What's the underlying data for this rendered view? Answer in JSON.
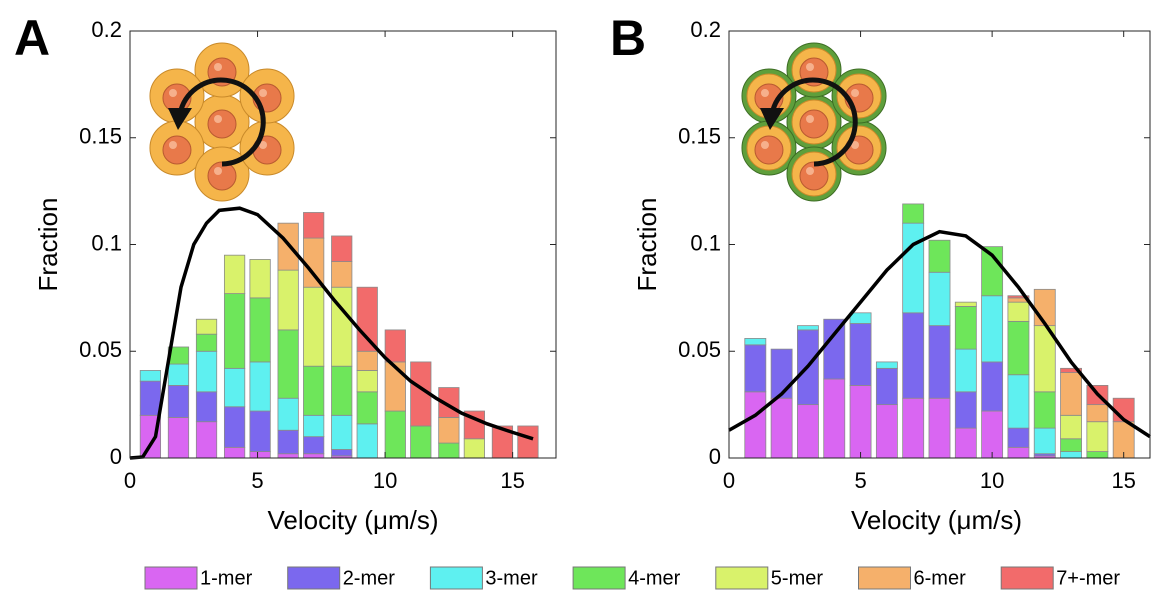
{
  "chart_data": [
    {
      "type": "stacked-bar",
      "panel_label": "A",
      "xlabel": "Velocity (μm/s)",
      "ylabel": "Fraction",
      "xlim": [
        0,
        16.7
      ],
      "ylim": [
        0,
        0.2
      ],
      "xticks": [
        0,
        5,
        10,
        15
      ],
      "yticks": [
        0,
        0.05,
        0.1,
        0.15,
        0.2
      ],
      "bar_width": 0.8,
      "x": [
        0.8,
        1.9,
        3.0,
        4.1,
        5.1,
        6.2,
        7.2,
        8.3,
        9.3,
        10.4,
        11.4,
        12.5,
        13.5,
        14.6,
        15.6
      ],
      "series": [
        {
          "name": "1-mer",
          "color": "#d966f2",
          "values": [
            0.02,
            0.019,
            0.017,
            0.005,
            0.003,
            0.002,
            0.002,
            0.001,
            0,
            0,
            0,
            0,
            0,
            0,
            0
          ]
        },
        {
          "name": "2-mer",
          "color": "#7b68ee",
          "values": [
            0.016,
            0.015,
            0.014,
            0.019,
            0.019,
            0.011,
            0.008,
            0.003,
            0,
            0,
            0,
            0,
            0,
            0,
            0
          ]
        },
        {
          "name": "3-mer",
          "color": "#5ef0f0",
          "values": [
            0.005,
            0.01,
            0.019,
            0.018,
            0.023,
            0.015,
            0.01,
            0.016,
            0.016,
            0,
            0,
            0,
            0,
            0,
            0
          ]
        },
        {
          "name": "4-mer",
          "color": "#6ee65a",
          "values": [
            0,
            0.008,
            0.008,
            0.035,
            0.03,
            0.032,
            0.023,
            0.023,
            0.015,
            0.022,
            0.015,
            0.007,
            0,
            0,
            0
          ]
        },
        {
          "name": "5-mer",
          "color": "#d9f26b",
          "values": [
            0,
            0,
            0.007,
            0.018,
            0.018,
            0.028,
            0.037,
            0.037,
            0.01,
            0,
            0,
            0,
            0.009,
            0,
            0
          ]
        },
        {
          "name": "6-mer",
          "color": "#f5b06b",
          "values": [
            0,
            0,
            0,
            0,
            0,
            0.022,
            0.023,
            0.012,
            0.009,
            0.023,
            0,
            0.012,
            0,
            0,
            0
          ]
        },
        {
          "name": "7+-mer",
          "color": "#f26b6b",
          "values": [
            0,
            0,
            0,
            0,
            0,
            0,
            0.012,
            0.012,
            0.03,
            0.015,
            0.03,
            0.014,
            0.013,
            0.015,
            0.015
          ]
        }
      ],
      "fit": {
        "color": "#000000",
        "x": [
          0,
          0.5,
          1,
          1.5,
          2,
          2.5,
          3,
          3.5,
          4.3,
          5,
          6,
          7,
          8,
          9,
          10,
          11,
          12,
          13,
          14,
          15,
          15.8
        ],
        "values": [
          0,
          0.0005,
          0.01,
          0.045,
          0.08,
          0.1,
          0.11,
          0.116,
          0.117,
          0.114,
          0.103,
          0.089,
          0.074,
          0.06,
          0.047,
          0.036,
          0.028,
          0.021,
          0.016,
          0.012,
          0.009
        ]
      }
    },
    {
      "type": "stacked-bar",
      "panel_label": "B",
      "xlabel": "Velocity (μm/s)",
      "ylabel": "Fraction",
      "xlim": [
        0,
        16
      ],
      "ylim": [
        0,
        0.2
      ],
      "xticks": [
        0,
        5,
        10,
        15
      ],
      "yticks": [
        0,
        0.05,
        0.1,
        0.15,
        0.2
      ],
      "bar_width": 0.8,
      "x": [
        1,
        2,
        3,
        4,
        5,
        6,
        7,
        8,
        9,
        10,
        11,
        12,
        13,
        14,
        15
      ],
      "series": [
        {
          "name": "1-mer",
          "color": "#d966f2",
          "values": [
            0.031,
            0.028,
            0.025,
            0.037,
            0.034,
            0.025,
            0.028,
            0.028,
            0.014,
            0.022,
            0.005,
            0.001,
            0,
            0,
            0
          ]
        },
        {
          "name": "2-mer",
          "color": "#7b68ee",
          "values": [
            0.022,
            0.023,
            0.035,
            0.028,
            0.029,
            0.017,
            0.04,
            0.034,
            0.017,
            0.023,
            0.009,
            0.001,
            0,
            0,
            0
          ]
        },
        {
          "name": "3-mer",
          "color": "#5ef0f0",
          "values": [
            0.003,
            0,
            0.002,
            0,
            0.005,
            0.003,
            0.042,
            0.025,
            0.02,
            0.031,
            0.025,
            0.012,
            0.003,
            0,
            0
          ]
        },
        {
          "name": "4-mer",
          "color": "#6ee65a",
          "values": [
            0,
            0,
            0,
            0,
            0,
            0,
            0.009,
            0.015,
            0.02,
            0.023,
            0.025,
            0.017,
            0.006,
            0.003,
            0
          ]
        },
        {
          "name": "5-mer",
          "color": "#d9f26b",
          "values": [
            0,
            0,
            0,
            0,
            0,
            0,
            0,
            0,
            0.002,
            0,
            0.009,
            0.031,
            0.011,
            0.014,
            0
          ]
        },
        {
          "name": "6-mer",
          "color": "#f5b06b",
          "values": [
            0,
            0,
            0,
            0,
            0,
            0,
            0,
            0,
            0,
            0,
            0.002,
            0.017,
            0.02,
            0.008,
            0.017
          ]
        },
        {
          "name": "7+-mer",
          "color": "#f26b6b",
          "values": [
            0,
            0,
            0,
            0,
            0,
            0,
            0,
            0,
            0,
            0,
            0.001,
            0,
            0.002,
            0.009,
            0.011
          ]
        }
      ],
      "fit": {
        "color": "#000000",
        "x": [
          0,
          1,
          2,
          3,
          4,
          5,
          6,
          7,
          8,
          9,
          10,
          11,
          12,
          13,
          14,
          15,
          16
        ],
        "values": [
          0.013,
          0.02,
          0.03,
          0.043,
          0.058,
          0.073,
          0.088,
          0.1,
          0.106,
          0.104,
          0.095,
          0.08,
          0.063,
          0.045,
          0.03,
          0.018,
          0.01
        ]
      }
    }
  ]
}
